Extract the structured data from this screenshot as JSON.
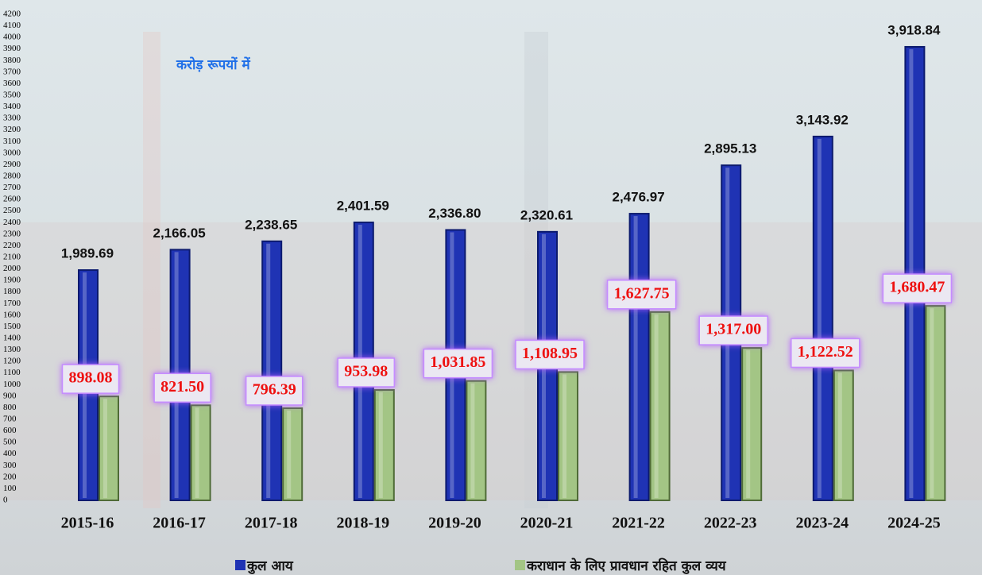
{
  "chart_data": {
    "type": "bar",
    "subtitle": "करोड़ रूपयों में",
    "categories": [
      "2015-16",
      "2016-17",
      "2017-18",
      "2018-19",
      "2019-20",
      "2020-21",
      "2021-22",
      "2022-23",
      "2023-24",
      "2024-25"
    ],
    "series": [
      {
        "name": "कुल आय",
        "color": "#1f33b4",
        "values": [
          1989.69,
          2166.05,
          2238.65,
          2401.59,
          2336.8,
          2320.61,
          2476.97,
          2895.13,
          3143.92,
          3918.84
        ],
        "value_labels": [
          "1,989.69",
          "2,166.05",
          "2,238.65",
          "2,401.59",
          "2,336.80",
          "2,320.61",
          "2,476.97",
          "2,895.13",
          "3,143.92",
          "3,918.84"
        ]
      },
      {
        "name": "कराधान के लिए प्रावधान रहित कुल व्यय",
        "color": "#a3c585",
        "values": [
          898.08,
          821.5,
          796.39,
          953.98,
          1031.85,
          1108.95,
          1627.75,
          1317.0,
          1122.52,
          1680.47
        ],
        "value_labels": [
          "898.08",
          "821.50",
          "796.39",
          "953.98",
          "1,031.85",
          "1,108.95",
          "1,627.75",
          "1,317.00",
          "1,122.52",
          "1,680.47"
        ]
      }
    ],
    "ylim": [
      0,
      4200
    ],
    "yticks": [
      0,
      100,
      200,
      300,
      400,
      500,
      600,
      700,
      800,
      900,
      1000,
      1100,
      1200,
      1300,
      1400,
      1500,
      1600,
      1700,
      1800,
      1900,
      2000,
      2100,
      2200,
      2300,
      2400,
      2500,
      2600,
      2700,
      2800,
      2900,
      3000,
      3100,
      3200,
      3300,
      3400,
      3500,
      3600,
      3700,
      3800,
      3900,
      4000,
      4100,
      4200
    ],
    "grid": false
  }
}
